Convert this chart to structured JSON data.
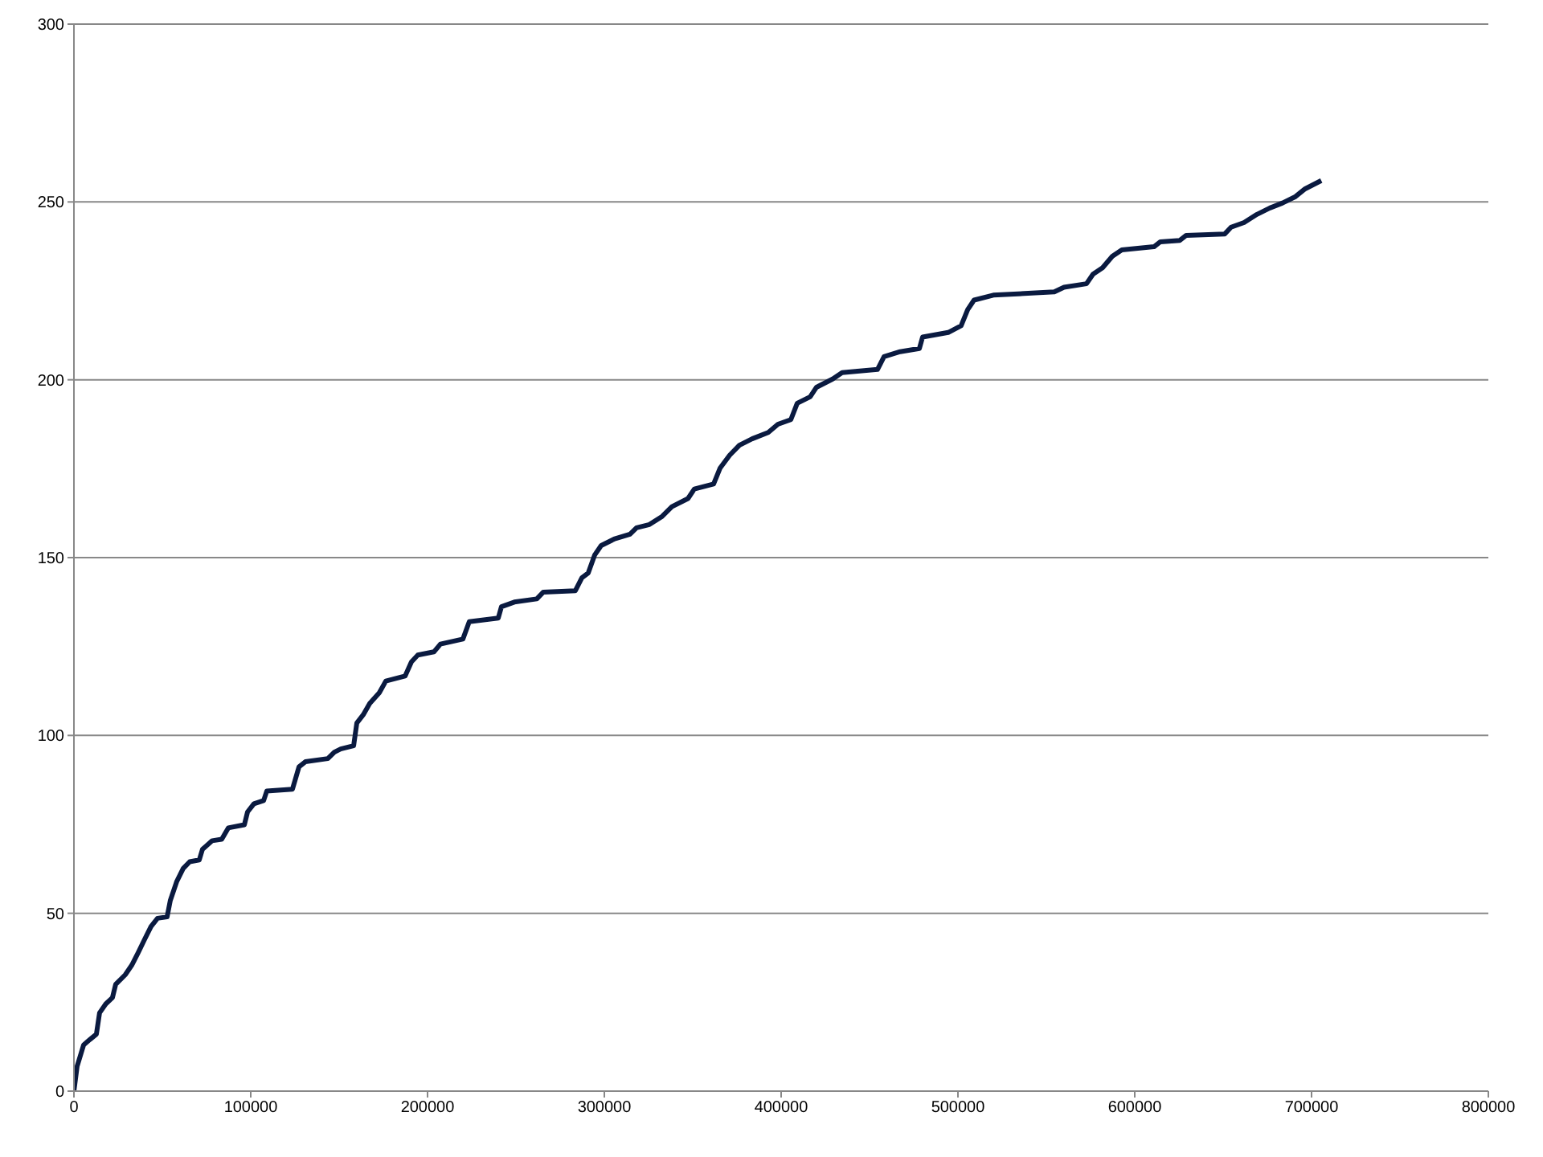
{
  "chart_data": {
    "type": "line",
    "xlim": [
      0,
      800000
    ],
    "xticks": [
      0,
      100000,
      200000,
      300000,
      400000,
      500000,
      600000,
      700000,
      800000
    ],
    "ylim": [
      0,
      300
    ],
    "yticks": [
      0,
      50,
      100,
      150,
      200,
      250,
      300
    ],
    "grid": "y",
    "legend": false,
    "marker": "none",
    "line_style": "solid",
    "series": [
      {
        "color": "#0a1a40",
        "x": [
          0,
          1800,
          5500,
          9000,
          12700,
          14500,
          18000,
          21800,
          23600,
          29000,
          32700,
          36400,
          40000,
          43600,
          47300,
          52700,
          54500,
          58200,
          61800,
          65500,
          70900,
          72700,
          78200,
          83600,
          87300,
          96400,
          98200,
          101800,
          107300,
          109100,
          123600,
          127300,
          130900,
          143600,
          147300,
          150900,
          158200,
          160000,
          163600,
          167300,
          172700,
          176400,
          187300,
          190900,
          194500,
          203600,
          207300,
          220000,
          223600,
          240000,
          241800,
          249100,
          261800,
          265500,
          283600,
          287300,
          290900,
          294500,
          298200,
          305500,
          314500,
          318200,
          325500,
          332700,
          338200,
          347300,
          350900,
          361800,
          365500,
          370900,
          376400,
          383600,
          392700,
          398200,
          405500,
          409100,
          416400,
          420000,
          429100,
          434500,
          454500,
          458200,
          467300,
          478200,
          480000,
          494500,
          501800,
          505500,
          509100,
          520000,
          554500,
          560000,
          572700,
          576400,
          581800,
          587300,
          592700,
          610900,
          614500,
          625500,
          629100,
          650900,
          654500,
          661800,
          669100,
          676400,
          683600,
          690900,
          696400,
          705500
        ],
        "values": [
          0,
          7,
          13,
          14.5,
          16,
          22,
          24.5,
          26.3,
          30,
          32.7,
          35.4,
          39,
          42.7,
          46.3,
          48.6,
          49,
          53.6,
          59,
          62.6,
          64.5,
          65,
          68,
          70.4,
          70.8,
          74,
          74.9,
          78.5,
          80.8,
          81.7,
          84.4,
          84.9,
          91.2,
          92.6,
          93.5,
          95.3,
          96.2,
          97.1,
          103.5,
          105.8,
          109,
          112,
          115.3,
          116.7,
          120.7,
          122.6,
          123.5,
          125.7,
          127.1,
          132,
          133,
          136.2,
          137.5,
          138.4,
          140.3,
          140.7,
          144.3,
          145.7,
          150.7,
          153.4,
          155.2,
          156.6,
          158.4,
          159.3,
          161.6,
          164.3,
          166.6,
          169.3,
          170.7,
          175.2,
          178.8,
          181.6,
          183.4,
          185.2,
          187.5,
          188.8,
          193.4,
          195.2,
          197.9,
          200.2,
          202,
          202.9,
          206.5,
          207.9,
          208.8,
          212,
          213.3,
          215.2,
          219.7,
          222.4,
          223.8,
          224.7,
          226,
          227,
          229.7,
          231.5,
          234.7,
          236.5,
          237.4,
          238.8,
          239.2,
          240.6,
          241,
          242.9,
          244.2,
          246.5,
          248.3,
          249.7,
          251.5,
          253.7,
          256
        ]
      }
    ]
  }
}
